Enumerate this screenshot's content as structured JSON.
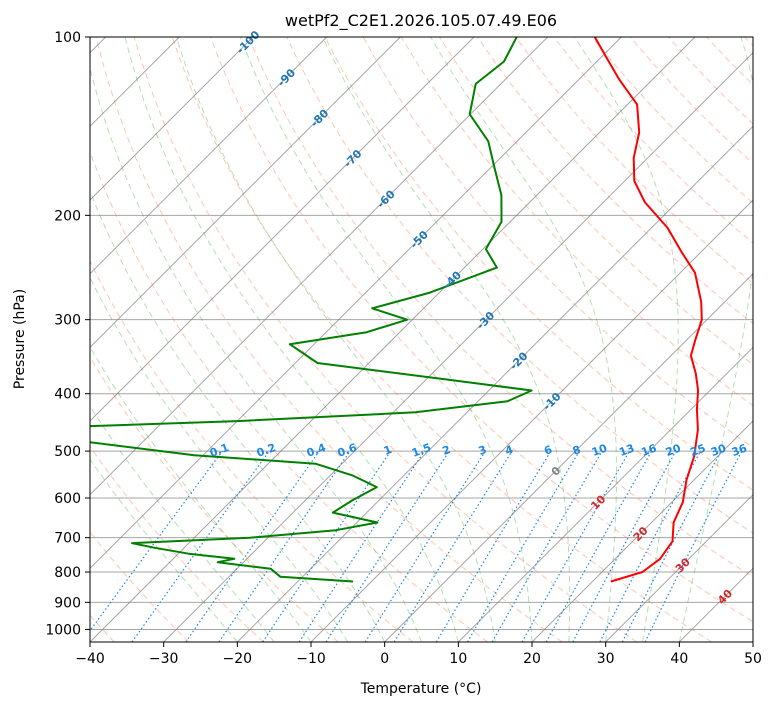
{
  "chart_data": {
    "type": "line",
    "subtype": "skew-T log-P diagram",
    "title": "wetPf2_C2E1.2026.105.07.49.E06",
    "xlabel": "Temperature (°C)",
    "ylabel": "Pressure (hPa)",
    "xlim": [
      -40,
      50
    ],
    "ylim": [
      1050,
      100
    ],
    "x_ticks": [
      -40,
      -30,
      -20,
      -10,
      0,
      10,
      20,
      30,
      40,
      50
    ],
    "y_ticks": [
      100,
      200,
      300,
      400,
      500,
      600,
      700,
      800,
      900,
      1000
    ],
    "grid": true,
    "colors": {
      "temperature": "#ff0000",
      "dewpoint": "#008000",
      "isotherm": "#808080",
      "dry_adiabat": "#ff7f50",
      "moist_adiabat": "#2ca02c",
      "mixing_ratio": "#1e88e5",
      "isotherm_label": "#1f77b4",
      "warm_label": "#d62728"
    },
    "series": [
      {
        "name": "Temperature",
        "points": [
          {
            "p": 830,
            "t": 22.5
          },
          {
            "p": 800,
            "t": 25.5
          },
          {
            "p": 760,
            "t": 26.1
          },
          {
            "p": 710,
            "t": 25.4
          },
          {
            "p": 660,
            "t": 23.0
          },
          {
            "p": 610,
            "t": 21.5
          },
          {
            "p": 560,
            "t": 19.0
          },
          {
            "p": 510,
            "t": 16.8
          },
          {
            "p": 460,
            "t": 13.7
          },
          {
            "p": 425,
            "t": 10.8
          },
          {
            "p": 395,
            "t": 8.4
          },
          {
            "p": 370,
            "t": 5.8
          },
          {
            "p": 345,
            "t": 2.7
          },
          {
            "p": 325,
            "t": 1.2
          },
          {
            "p": 300,
            "t": -0.7
          },
          {
            "p": 280,
            "t": -3.2
          },
          {
            "p": 250,
            "t": -8.0
          },
          {
            "p": 230,
            "t": -12.8
          },
          {
            "p": 210,
            "t": -17.8
          },
          {
            "p": 190,
            "t": -24.4
          },
          {
            "p": 175,
            "t": -28.7
          },
          {
            "p": 160,
            "t": -31.9
          },
          {
            "p": 145,
            "t": -34.6
          },
          {
            "p": 130,
            "t": -38.7
          },
          {
            "p": 118,
            "t": -44.5
          },
          {
            "p": 108,
            "t": -49.4
          },
          {
            "p": 100,
            "t": -53.6
          }
        ]
      },
      {
        "name": "Dewpoint",
        "points": [
          {
            "p": 830,
            "t": -12.5
          },
          {
            "p": 815,
            "t": -23.0
          },
          {
            "p": 790,
            "t": -25.4
          },
          {
            "p": 770,
            "t": -33.5
          },
          {
            "p": 760,
            "t": -31.7
          },
          {
            "p": 745,
            "t": -38.6
          },
          {
            "p": 728,
            "t": -44.0
          },
          {
            "p": 715,
            "t": -47.7
          },
          {
            "p": 700,
            "t": -32.5
          },
          {
            "p": 680,
            "t": -21.8
          },
          {
            "p": 660,
            "t": -17.2
          },
          {
            "p": 635,
            "t": -24.6
          },
          {
            "p": 605,
            "t": -23.6
          },
          {
            "p": 575,
            "t": -22.1
          },
          {
            "p": 550,
            "t": -26.9
          },
          {
            "p": 525,
            "t": -33.6
          },
          {
            "p": 508,
            "t": -51.2
          },
          {
            "p": 460,
            "t": -82.6
          },
          {
            "p": 445,
            "t": -50.0
          },
          {
            "p": 430,
            "t": -27.0
          },
          {
            "p": 412,
            "t": -16.0
          },
          {
            "p": 395,
            "t": -14.2
          },
          {
            "p": 380,
            "t": -26.0
          },
          {
            "p": 355,
            "t": -47.0
          },
          {
            "p": 330,
            "t": -53.3
          },
          {
            "p": 315,
            "t": -44.5
          },
          {
            "p": 300,
            "t": -40.7
          },
          {
            "p": 287,
            "t": -47.0
          },
          {
            "p": 270,
            "t": -41.3
          },
          {
            "p": 245,
            "t": -35.6
          },
          {
            "p": 228,
            "t": -39.6
          },
          {
            "p": 205,
            "t": -41.2
          },
          {
            "p": 185,
            "t": -44.8
          },
          {
            "p": 165,
            "t": -49.8
          },
          {
            "p": 150,
            "t": -53.9
          },
          {
            "p": 135,
            "t": -60.1
          },
          {
            "p": 120,
            "t": -63.4
          },
          {
            "p": 110,
            "t": -62.6
          },
          {
            "p": 100,
            "t": -64.2
          }
        ]
      }
    ],
    "isotherm_labels": [
      {
        "text": "-100",
        "t": -100
      },
      {
        "text": "-90",
        "t": -90
      },
      {
        "text": "-80",
        "t": -80
      },
      {
        "text": "-70",
        "t": -70
      },
      {
        "text": "-60",
        "t": -60
      },
      {
        "text": "-50",
        "t": -50
      },
      {
        "text": "-40",
        "t": -40
      },
      {
        "text": "-30",
        "t": -30
      },
      {
        "text": "-20",
        "t": -20
      },
      {
        "text": "-10",
        "t": -10
      },
      {
        "text": "0",
        "t": 0
      },
      {
        "text": "10",
        "t": 10
      },
      {
        "text": "20",
        "t": 20
      },
      {
        "text": "30",
        "t": 30
      },
      {
        "text": "40",
        "t": 40
      }
    ],
    "mixing_ratio_labels": [
      "0.1",
      "0.2",
      "0.4",
      "0.6",
      "1",
      "1.5",
      "2",
      "3",
      "4",
      "6",
      "8",
      "10",
      "13",
      "16",
      "20",
      "25",
      "30",
      "36"
    ]
  }
}
